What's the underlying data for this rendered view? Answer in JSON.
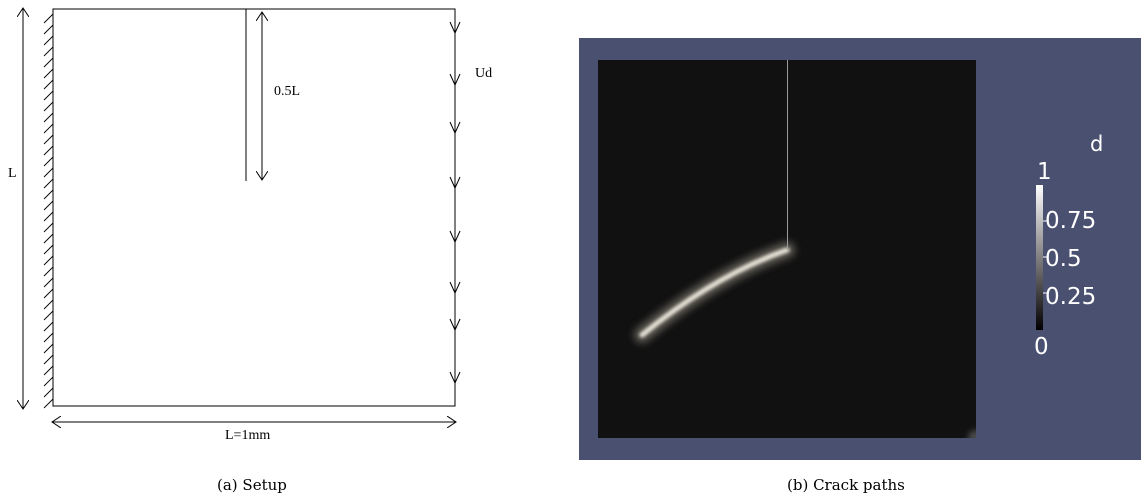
{
  "setup": {
    "dim_half": "0.5L",
    "load": "Ud",
    "height": "L",
    "width": "L=1mm",
    "caption": "(a) Setup"
  },
  "crack": {
    "colorbar_title": "d",
    "ticks": [
      "1",
      "0.75",
      "0.5",
      "0.25",
      "0"
    ],
    "tick_values": [
      1,
      0.75,
      0.5,
      0.25,
      0
    ],
    "caption": "(b) Crack paths",
    "colors": {
      "background": "#4a5070",
      "domain": "#111111",
      "crack": "#e8e4d8"
    }
  }
}
